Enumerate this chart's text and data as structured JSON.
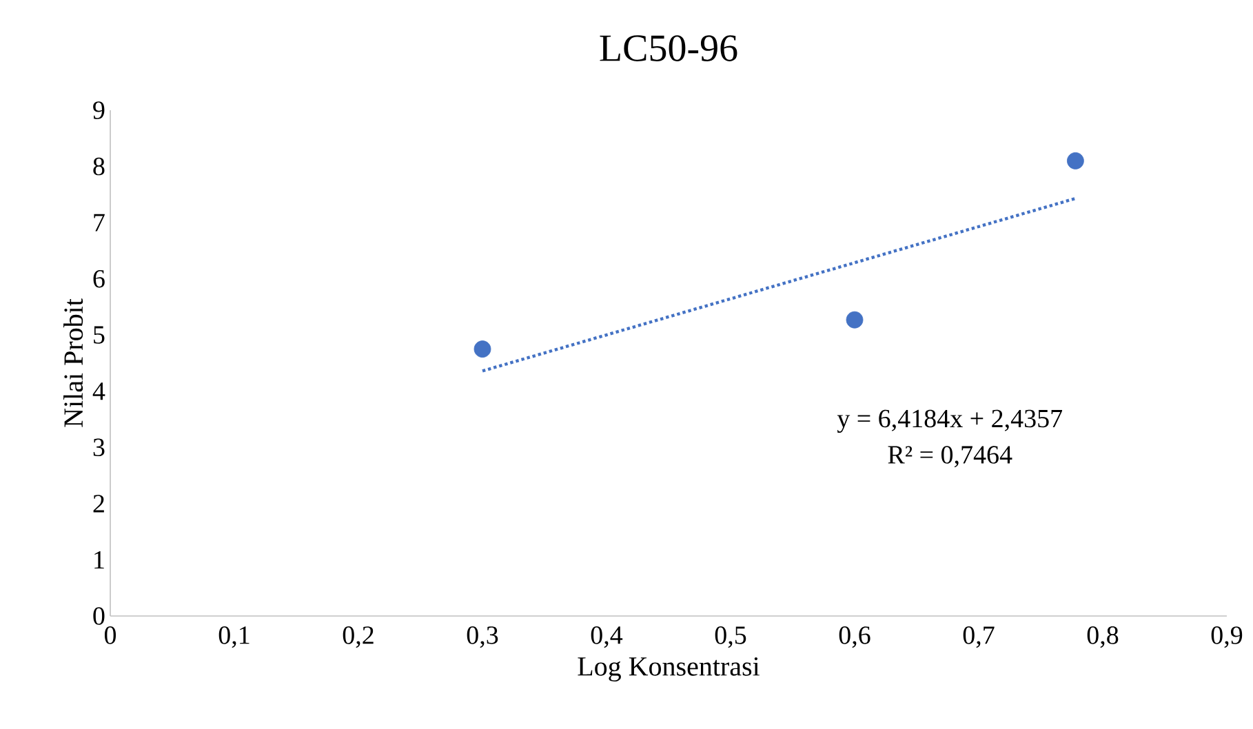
{
  "chart_data": {
    "type": "scatter",
    "title": "LC50-96",
    "xlabel": "Log Konsentrasi",
    "ylabel": "Nilai Probit",
    "xlim": [
      0,
      0.9
    ],
    "ylim": [
      0,
      9
    ],
    "xticks": [
      0,
      {
        "value": 0.1,
        "label": "0,1"
      },
      {
        "value": 0.2,
        "label": "0,2"
      },
      {
        "value": 0.3,
        "label": "0,3"
      },
      {
        "value": 0.4,
        "label": "0,4"
      },
      {
        "value": 0.5,
        "label": "0,5"
      },
      {
        "value": 0.6,
        "label": "0,6"
      },
      {
        "value": 0.7,
        "label": "0,7"
      },
      {
        "value": 0.8,
        "label": "0,8"
      },
      {
        "value": 0.9,
        "label": "0,9"
      }
    ],
    "yticks": [
      0,
      1,
      2,
      3,
      4,
      5,
      6,
      7,
      8,
      9
    ],
    "series": [
      {
        "color": "#4472c4",
        "marker": "circle",
        "x": [
          0.3,
          0.6,
          0.778
        ],
        "values": [
          4.75,
          5.27,
          8.1
        ]
      },
      {
        "type": "line",
        "color": "#4472c4",
        "line_style": "dotted",
        "marker": "none",
        "x": [
          0.3,
          0.778
        ],
        "values": [
          4.36,
          7.43
        ]
      }
    ],
    "annotations": [
      "y = 6,4184x + 2,4357",
      "R² = 0,7464"
    ]
  }
}
